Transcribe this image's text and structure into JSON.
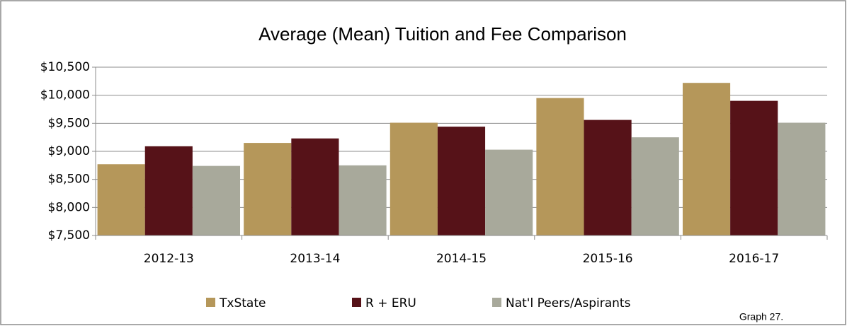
{
  "chart_data": {
    "type": "bar",
    "title": "Average (Mean) Tuition and Fee Comparison",
    "categories": [
      "2012-13",
      "2013-14",
      "2014-15",
      "2015-16",
      "2016-17"
    ],
    "series": [
      {
        "name": "TxState",
        "color": "#b5975a",
        "values": [
          8770,
          9150,
          9510,
          9950,
          10220
        ]
      },
      {
        "name": "R + ERU",
        "color": "#561218",
        "values": [
          9090,
          9230,
          9440,
          9560,
          9900
        ]
      },
      {
        "name": "Nat'l Peers/Aspirants",
        "color": "#a8a99b",
        "values": [
          8740,
          8750,
          9030,
          9250,
          9510
        ]
      }
    ],
    "ylim": [
      7500,
      10500
    ],
    "yticks": [
      {
        "value": 7500,
        "label": "$7,500"
      },
      {
        "value": 8000,
        "label": "$8,000"
      },
      {
        "value": 8500,
        "label": "$8,500"
      },
      {
        "value": 9000,
        "label": "$9,000"
      },
      {
        "value": 9500,
        "label": "$9,500"
      },
      {
        "value": 10000,
        "label": "$10,000"
      },
      {
        "value": 10500,
        "label": "$10,500"
      }
    ],
    "grid": true,
    "legend": "bottom",
    "annotation": "Graph 27."
  }
}
